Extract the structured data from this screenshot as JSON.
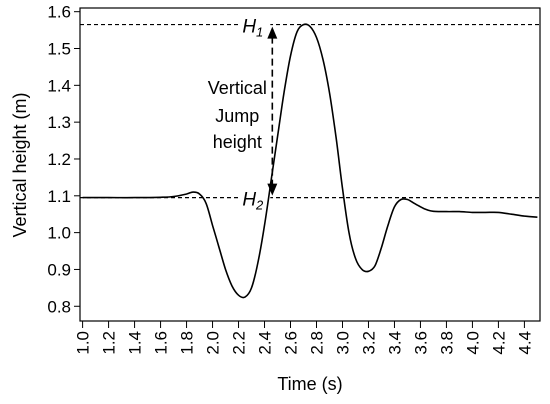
{
  "chart_data": {
    "type": "line",
    "title": "",
    "xlabel": "Time (s)",
    "ylabel": "Vertical height (m)",
    "xlim": [
      0.98,
      4.52
    ],
    "ylim": [
      0.76,
      1.61
    ],
    "x_ticks": [
      "1.0",
      "1.2",
      "1.4",
      "1.6",
      "1.8",
      "2.0",
      "2.2",
      "2.4",
      "2.6",
      "2.8",
      "3.0",
      "3.2",
      "3.4",
      "3.6",
      "3.8",
      "4.0",
      "4.2",
      "4.4"
    ],
    "y_ticks": [
      "0.8",
      "0.9",
      "1.0",
      "1.1",
      "1.2",
      "1.3",
      "1.4",
      "1.5",
      "1.6"
    ],
    "grid": false,
    "series": [
      {
        "x": [
          1.0,
          1.2,
          1.4,
          1.6,
          1.7,
          1.8,
          1.85,
          1.9,
          1.95,
          2.0,
          2.05,
          2.1,
          2.15,
          2.2,
          2.25,
          2.3,
          2.35,
          2.4,
          2.45,
          2.5,
          2.55,
          2.6,
          2.65,
          2.7,
          2.75,
          2.8,
          2.85,
          2.9,
          2.95,
          3.0,
          3.05,
          3.1,
          3.15,
          3.2,
          3.25,
          3.3,
          3.35,
          3.4,
          3.45,
          3.5,
          3.55,
          3.6,
          3.65,
          3.7,
          3.8,
          3.9,
          4.0,
          4.1,
          4.2,
          4.3,
          4.4,
          4.5
        ],
        "y": [
          1.095,
          1.095,
          1.095,
          1.096,
          1.098,
          1.105,
          1.11,
          1.105,
          1.08,
          1.02,
          0.96,
          0.9,
          0.855,
          0.83,
          0.825,
          0.85,
          0.92,
          1.02,
          1.14,
          1.26,
          1.38,
          1.48,
          1.545,
          1.565,
          1.56,
          1.53,
          1.47,
          1.38,
          1.26,
          1.12,
          1.0,
          0.93,
          0.9,
          0.895,
          0.91,
          0.96,
          1.02,
          1.07,
          1.09,
          1.09,
          1.08,
          1.07,
          1.062,
          1.058,
          1.057,
          1.057,
          1.055,
          1.055,
          1.055,
          1.05,
          1.045,
          1.042
        ]
      }
    ],
    "reference_lines": [
      {
        "label": "H",
        "subscript": "1",
        "y": 1.565
      },
      {
        "label": "H",
        "subscript": "2",
        "y": 1.095
      }
    ],
    "annotation": {
      "lines": [
        "Vertical",
        "Jump",
        "height"
      ],
      "arrow_x": 2.46,
      "from_y": 1.095,
      "to_y": 1.565
    }
  }
}
